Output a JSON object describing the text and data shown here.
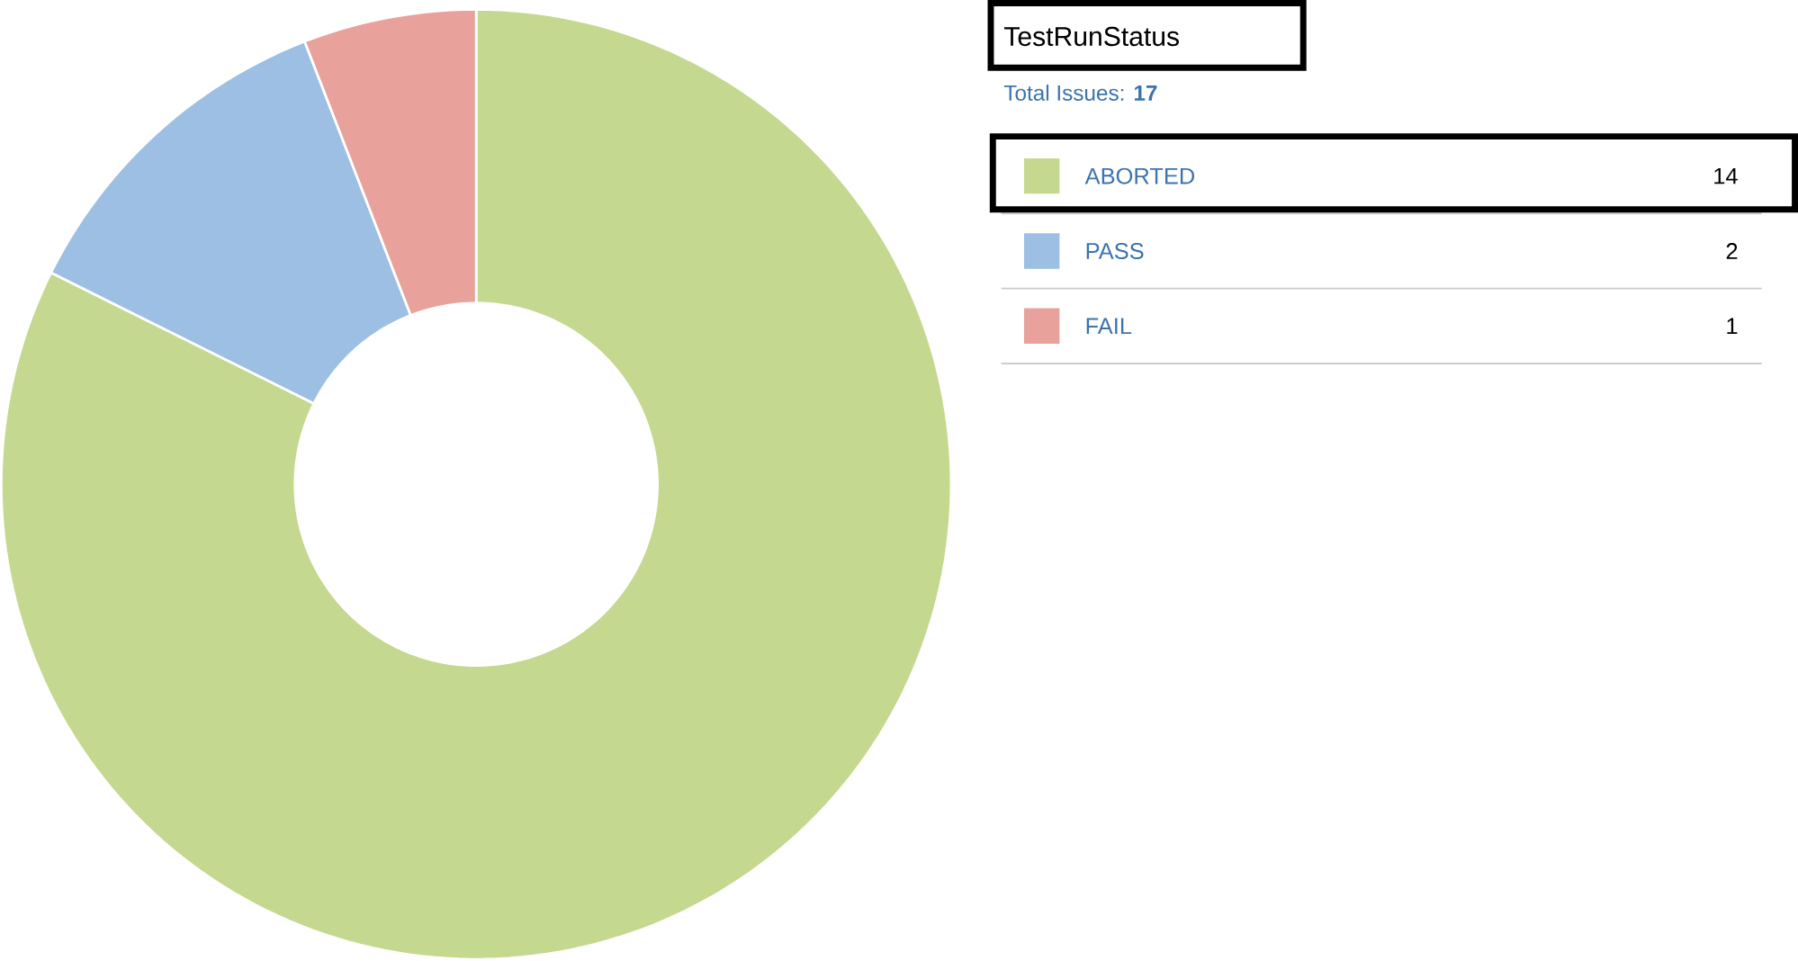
{
  "chart_data": {
    "type": "donut",
    "title": "TestRunStatus",
    "subtitle": "Total Issues: **17**",
    "categories": [
      "ABORTED",
      "PASS",
      "FAIL"
    ],
    "values": [
      14,
      2,
      1
    ],
    "value_labels": [
      "14",
      "2",
      "1"
    ],
    "colors": [
      "#c5d88f",
      "#9dbfe3",
      "#e8a19b"
    ],
    "legend": "right"
  }
}
